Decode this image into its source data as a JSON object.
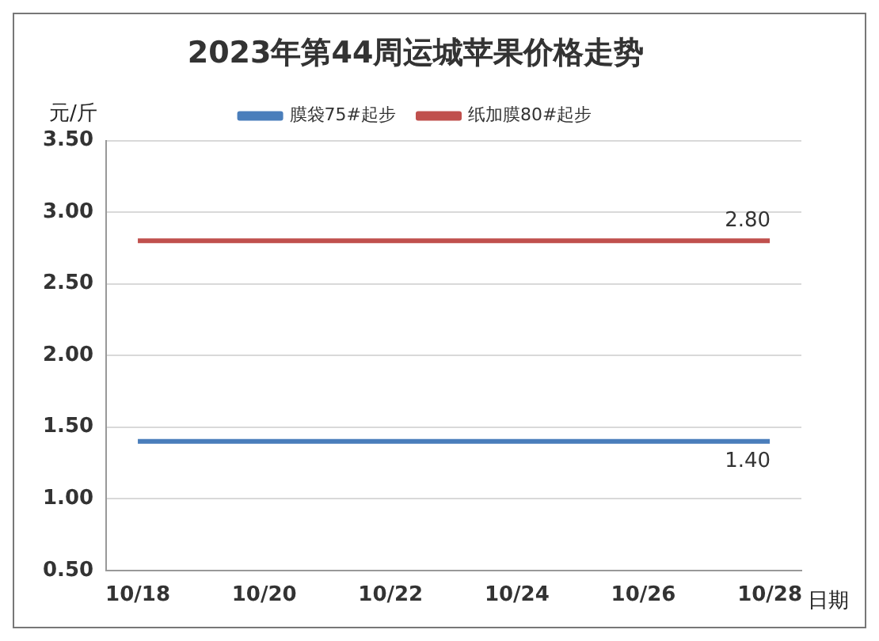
{
  "chart_data": {
    "type": "line",
    "title": "2023年第44周运城苹果价格走势",
    "ylabel": "元/斤",
    "xlabel": "日期",
    "categories": [
      "10/18",
      null,
      "10/20",
      null,
      "10/22",
      null,
      "10/24",
      null,
      "10/26",
      null,
      "10/28"
    ],
    "series": [
      {
        "name": "膜袋75#起步",
        "color": "#4a7ebb",
        "values": [
          1.4,
          1.4,
          1.4,
          1.4,
          1.4,
          1.4,
          1.4,
          1.4,
          1.4,
          1.4,
          1.4
        ],
        "value_labels": [
          null,
          null,
          null,
          null,
          null,
          null,
          null,
          null,
          null,
          null,
          "1.40"
        ]
      },
      {
        "name": "纸加膜80#起步",
        "color": "#c0504d",
        "values": [
          2.8,
          2.8,
          2.8,
          2.8,
          2.8,
          2.8,
          2.8,
          2.8,
          2.8,
          2.8,
          2.8
        ],
        "value_labels": [
          null,
          null,
          null,
          null,
          null,
          null,
          null,
          null,
          null,
          null,
          "2.80"
        ]
      }
    ],
    "ylim": [
      0.5,
      3.5
    ],
    "yticks": [
      {
        "value": 0.5,
        "label": "0.50"
      },
      {
        "value": 1,
        "label": "1.00"
      },
      {
        "value": 1.5,
        "label": "1.50"
      },
      {
        "value": 2,
        "label": "2.00"
      },
      {
        "value": 2.5,
        "label": "2.50"
      },
      {
        "value": 3,
        "label": "3.00"
      },
      {
        "value": 3.5,
        "label": "3.50"
      }
    ],
    "grid": "y",
    "legend": "top",
    "marker": "none",
    "line_style": "solid"
  }
}
